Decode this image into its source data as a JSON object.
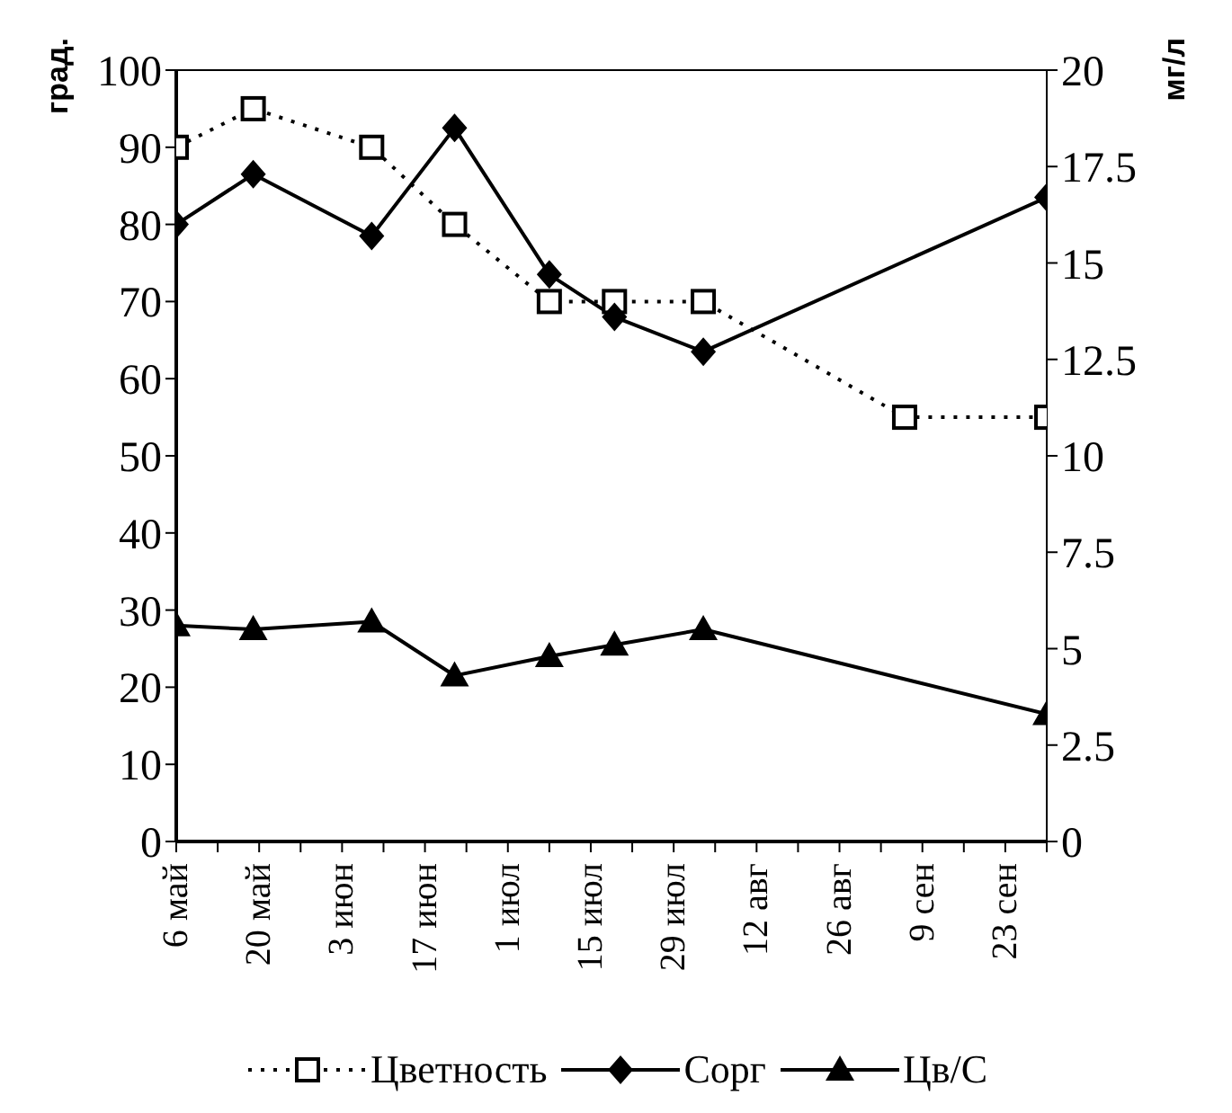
{
  "chart_data": {
    "type": "line",
    "ylabel": "град.",
    "y2label": "мг/л",
    "xlim": [
      "--05-06",
      "--09-30"
    ],
    "xticks": [
      {
        "value": "--05-06",
        "label": "6 май"
      },
      {
        "value": "--05-13",
        "label": null
      },
      {
        "value": "--05-20",
        "label": "20 май"
      },
      {
        "value": "--05-27",
        "label": null
      },
      {
        "value": "--06-03",
        "label": "3 июн"
      },
      {
        "value": "--06-10",
        "label": null
      },
      {
        "value": "--06-17",
        "label": "17 июн"
      },
      {
        "value": "--06-24",
        "label": null
      },
      {
        "value": "--07-01",
        "label": "1 июл"
      },
      {
        "value": "--07-08",
        "label": null
      },
      {
        "value": "--07-15",
        "label": "15 июл"
      },
      {
        "value": "--07-22",
        "label": null
      },
      {
        "value": "--07-29",
        "label": "29 июл"
      },
      {
        "value": "--08-05",
        "label": null
      },
      {
        "value": "--08-12",
        "label": "12 авг"
      },
      {
        "value": "--08-19",
        "label": null
      },
      {
        "value": "--08-26",
        "label": "26 авг"
      },
      {
        "value": "--09-02",
        "label": null
      },
      {
        "value": "--09-09",
        "label": "9 сен"
      },
      {
        "value": "--09-16",
        "label": null
      },
      {
        "value": "--09-23",
        "label": "23 сен"
      },
      {
        "value": "--09-30",
        "label": null
      }
    ],
    "ylim": [
      0,
      100
    ],
    "yticks": [
      0,
      10,
      20,
      30,
      40,
      50,
      60,
      70,
      80,
      90,
      100
    ],
    "y2lim": [
      0,
      20
    ],
    "y2ticks": [
      0,
      2.5,
      5,
      7.5,
      10,
      12.5,
      15,
      17.5,
      20
    ],
    "legend": "bottom",
    "series": [
      {
        "name": "Цветность",
        "color": "#000000",
        "marker": "square",
        "line_style": "dotted",
        "x": [
          "--05-06",
          "--05-19",
          "--06-08",
          "--06-22",
          "--07-08",
          "--07-19",
          "--08-03",
          "--09-06",
          "--09-30"
        ],
        "values": [
          90,
          95,
          90,
          80,
          70,
          70,
          70,
          55,
          55
        ]
      },
      {
        "name": "Сорг",
        "color": "#000000",
        "marker": "diamond",
        "line_style": "solid",
        "axis": "y2",
        "x": [
          "--05-06",
          "--05-19",
          "--06-08",
          "--06-22",
          "--07-08",
          "--07-19",
          "--08-03",
          "--09-30"
        ],
        "values": [
          16,
          17.3,
          15.7,
          18.5,
          14.7,
          13.6,
          12.7,
          16.7
        ]
      },
      {
        "name": "Цв/С",
        "color": "#000000",
        "marker": "triangle",
        "line_style": "solid",
        "axis": "y2",
        "x": [
          "--05-06",
          "--05-19",
          "--06-08",
          "--06-22",
          "--07-08",
          "--07-19",
          "--08-03",
          "--09-30"
        ],
        "values": [
          5.6,
          5.5,
          5.7,
          4.3,
          4.8,
          5.1,
          5.5,
          3.3
        ]
      }
    ]
  }
}
